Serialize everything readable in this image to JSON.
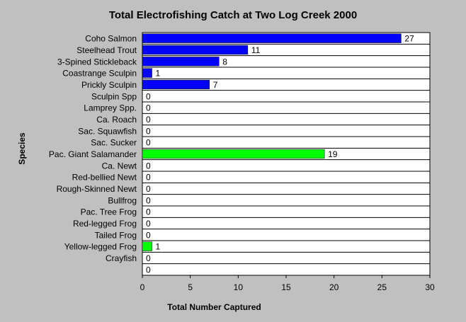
{
  "chart_data": {
    "type": "bar",
    "orientation": "horizontal",
    "title": "Total Electrofishing Catch at Two Log Creek 2000",
    "xlabel": "Total Number Captured",
    "ylabel": "Species",
    "xlim": [
      0,
      30
    ],
    "x_ticks": [
      0,
      5,
      10,
      15,
      20,
      25,
      30
    ],
    "grid": "horizontal",
    "categories": [
      "Coho Salmon",
      "Steelhead Trout",
      "3-Spined Stickleback",
      "Coastrange Sculpin",
      "Prickly Sculpin",
      "Sculpin Spp",
      "Lamprey Spp.",
      "Ca. Roach",
      "Sac. Squawfish",
      "Sac. Sucker",
      "Pac. Giant Salamander",
      "Ca. Newt",
      "Red-bellied Newt",
      "Rough-Skinned Newt",
      "Bullfrog",
      "Pac. Tree Frog",
      "Red-legged Frog",
      "Tailed Frog",
      "Yellow-legged Frog",
      "Crayfish",
      ""
    ],
    "values": [
      27,
      11,
      8,
      1,
      7,
      0,
      0,
      0,
      0,
      0,
      19,
      0,
      0,
      0,
      0,
      0,
      0,
      0,
      1,
      0,
      0
    ],
    "bar_colors": [
      "#0000ff",
      "#0000ff",
      "#0000ff",
      "#0000ff",
      "#0000ff",
      "#0000ff",
      "#0000ff",
      "#0000ff",
      "#0000ff",
      "#0000ff",
      "#00ff00",
      "#00ff00",
      "#00ff00",
      "#00ff00",
      "#00ff00",
      "#00ff00",
      "#00ff00",
      "#00ff00",
      "#00ff00",
      "#0000ff",
      "#0000ff"
    ],
    "colors": {
      "fish": "#0000ff",
      "amphibian": "#00ff00",
      "plot_bg": "#ffffff",
      "page_bg": "#c0c0c0"
    }
  }
}
